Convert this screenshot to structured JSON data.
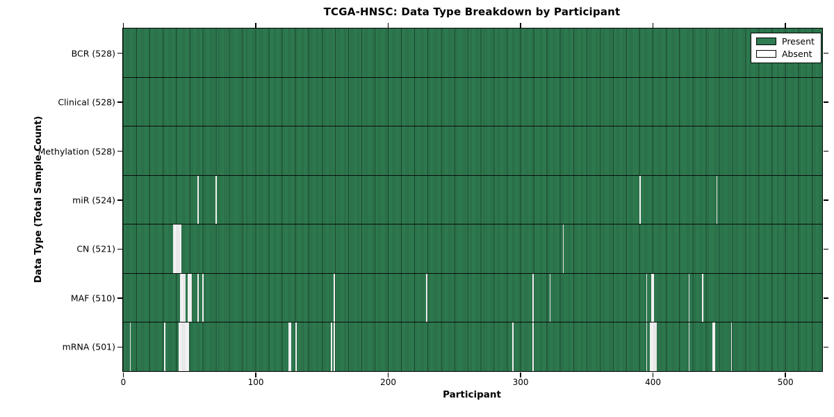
{
  "title": "TCGA-HNSC: Data Type Breakdown by Participant",
  "colors": {
    "present": "#2f7d51",
    "absent": "#ffffff",
    "spine": "#000000",
    "background": "#ffffff"
  },
  "legend": {
    "present_label": "Present",
    "absent_label": "Absent"
  },
  "chart_data": {
    "type": "heatmap",
    "title": "TCGA-HNSC: Data Type Breakdown by Participant",
    "xlabel": "Participant",
    "ylabel": "Data Type (Total Sample Count)",
    "n_participants": 528,
    "x_ticks": [
      0,
      100,
      200,
      300,
      400,
      500
    ],
    "xlim": [
      0,
      528
    ],
    "grid": false,
    "legend_position": "upper right",
    "legend": [
      {
        "label": "Present",
        "color": "#2f7d51"
      },
      {
        "label": "Absent",
        "color": "#ffffff"
      }
    ],
    "rows": [
      {
        "label": "BCR",
        "total": 528,
        "absent_participants": []
      },
      {
        "label": "Clinical",
        "total": 528,
        "absent_participants": []
      },
      {
        "label": "Methylation",
        "total": 528,
        "absent_participants": []
      },
      {
        "label": "miR",
        "total": 524,
        "absent_participants": [
          56,
          70,
          390,
          448
        ]
      },
      {
        "label": "CN",
        "total": 521,
        "absent_participants": [
          38,
          39,
          40,
          41,
          42,
          43,
          332
        ]
      },
      {
        "label": "MAF",
        "total": 510,
        "absent_participants": [
          43,
          44,
          45,
          46,
          49,
          50,
          51,
          56,
          60,
          159,
          229,
          309,
          322,
          395,
          399,
          400,
          427,
          437
        ]
      },
      {
        "label": "mRNA",
        "total": 501,
        "absent_participants": [
          5,
          31,
          42,
          43,
          44,
          45,
          46,
          47,
          48,
          49,
          125,
          126,
          130,
          157,
          159,
          294,
          309,
          395,
          398,
          399,
          400,
          401,
          402,
          427,
          445,
          446,
          459
        ]
      }
    ]
  }
}
